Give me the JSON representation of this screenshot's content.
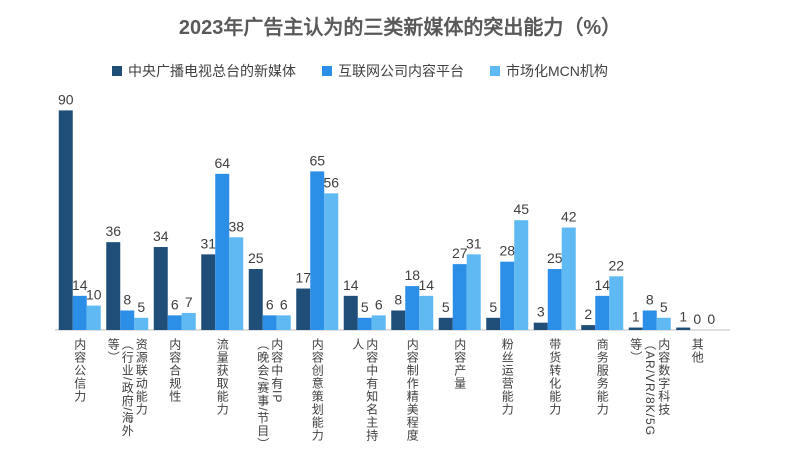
{
  "chart_data": {
    "type": "bar",
    "title": "2023年广告主认为的三类新媒体的突出能力（%）",
    "categories": [
      "内容公信力",
      "资源联动能力\n（行业/政府/海外等）",
      "内容合规性",
      "流量获取能力",
      "内容中有IP\n（晚会/赛事/节目）",
      "内容创意策划能力",
      "内容中有知名主持人",
      "内容制作精美程度",
      "内容产量",
      "粉丝运营能力",
      "带货转化能力",
      "商务服务能力",
      "内容数字科技\n（AR/VR/8K/5G等）",
      "其他"
    ],
    "series": [
      {
        "name": "中央广播电视总台的新媒体",
        "color": "#1f4e79",
        "values": [
          90,
          36,
          34,
          31,
          25,
          17,
          14,
          8,
          5,
          5,
          3,
          2,
          1,
          1
        ]
      },
      {
        "name": "互联网公司内容平台",
        "color": "#2b8fe8",
        "values": [
          14,
          8,
          6,
          64,
          6,
          65,
          5,
          18,
          27,
          28,
          25,
          14,
          8,
          0
        ]
      },
      {
        "name": "市场化MCN机构",
        "color": "#5fb9f2",
        "values": [
          10,
          5,
          7,
          38,
          6,
          56,
          6,
          14,
          31,
          45,
          42,
          22,
          5,
          0
        ]
      }
    ],
    "legend": "top"
  }
}
